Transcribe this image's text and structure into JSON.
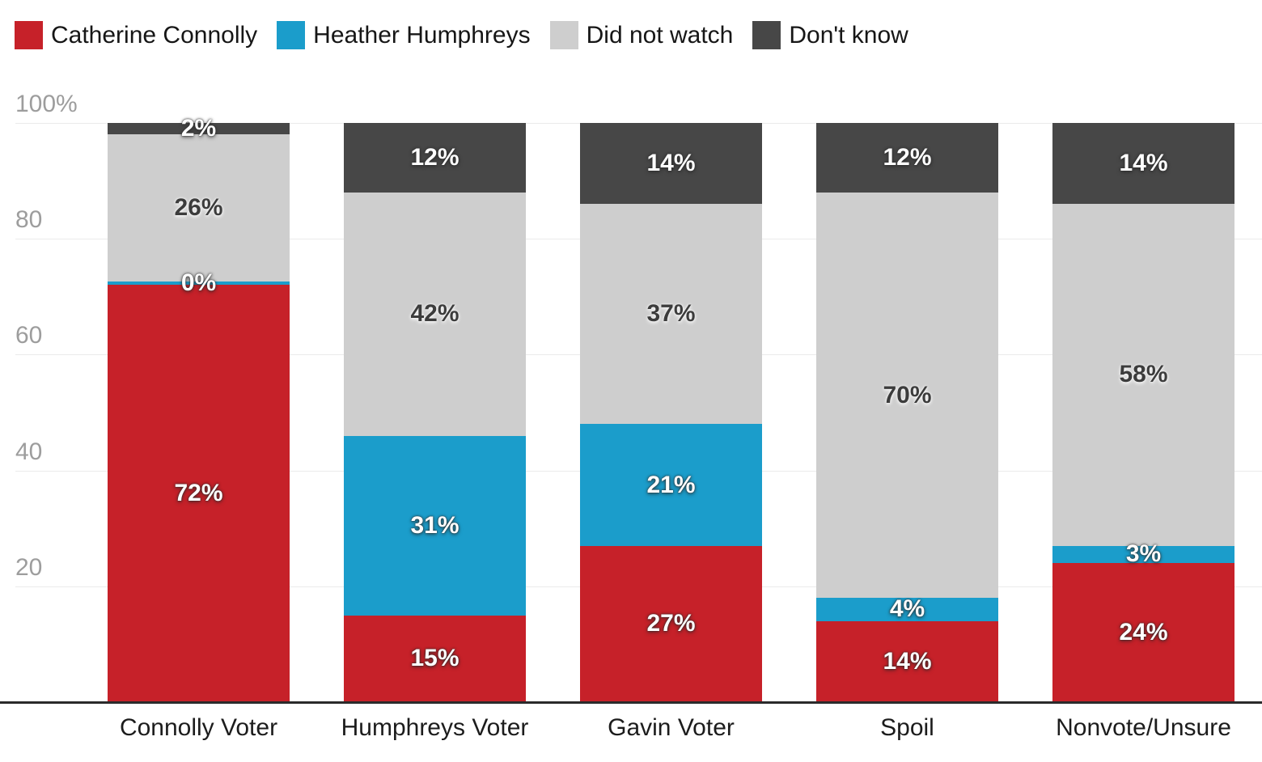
{
  "chart": {
    "background": "#ffffff",
    "legend": {
      "position": "top-left",
      "items": [
        {
          "label": "Catherine Connolly",
          "color": "#c62129"
        },
        {
          "label": "Heather Humphreys",
          "color": "#1b9dcb"
        },
        {
          "label": "Did not watch",
          "color": "#cecece"
        },
        {
          "label": "Don't know",
          "color": "#474747"
        }
      ]
    },
    "y_axis": {
      "tick_labels": [
        "100%",
        "80",
        "60",
        "40",
        "20"
      ],
      "tick_values": [
        100,
        80,
        60,
        40,
        20
      ],
      "label_color": "#9d9d9d",
      "gridline_color": "#ebebeb",
      "axis_line_color": "#2b2b2b"
    },
    "x_axis": {
      "categories": [
        "Connolly Voter",
        "Humphreys Voter",
        "Gavin Voter",
        "Spoil",
        "Nonvote/Unsure"
      ],
      "label_color": "#1c1c1c"
    }
  },
  "chart_data": {
    "type": "bar",
    "stacked": true,
    "orientation": "vertical",
    "unit": "%",
    "grid": true,
    "legend_position": "top",
    "ylim": [
      0,
      100
    ],
    "categories": [
      "Connolly Voter",
      "Humphreys Voter",
      "Gavin Voter",
      "Spoil",
      "Nonvote/Unsure"
    ],
    "series": [
      {
        "name": "Catherine Connolly",
        "color": "#c62129",
        "label_color": "#ffffff",
        "values": [
          72,
          15,
          27,
          14,
          24
        ],
        "labels": [
          "72%",
          "15%",
          "27%",
          "14%",
          "24%"
        ]
      },
      {
        "name": "Heather Humphreys",
        "color": "#1b9dcb",
        "label_color": "#ffffff",
        "values": [
          0,
          31,
          21,
          4,
          3
        ],
        "labels": [
          "0%",
          "31%",
          "21%",
          "4%",
          "3%"
        ]
      },
      {
        "name": "Did not watch",
        "color": "#cecece",
        "label_color": "#3c3c3c",
        "values": [
          26,
          42,
          37,
          70,
          58
        ],
        "labels": [
          "26%",
          "42%",
          "37%",
          "70%",
          "58%"
        ]
      },
      {
        "name": "Don't know",
        "color": "#474747",
        "label_color": "#ffffff",
        "values": [
          2,
          12,
          14,
          12,
          14
        ],
        "labels": [
          "2%",
          "12%",
          "14%",
          "12%",
          "14%"
        ]
      }
    ]
  }
}
